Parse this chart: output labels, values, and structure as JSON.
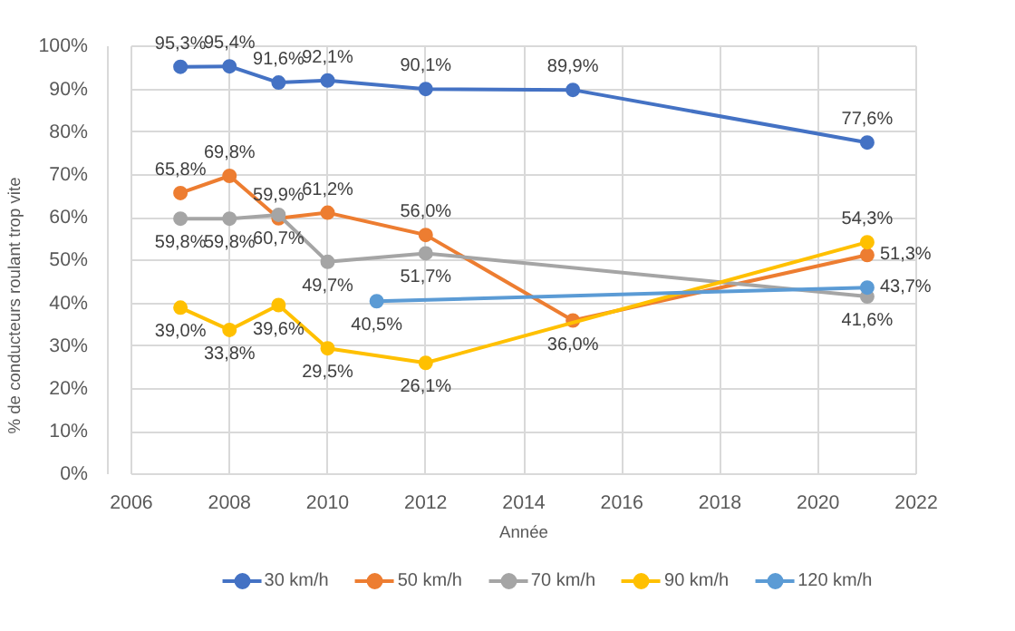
{
  "chart_data": {
    "type": "line",
    "xlabel": "Année",
    "ylabel": "% de conducteurs roulant trop vite",
    "xlim": [
      2006,
      2022
    ],
    "xticks": [
      2006,
      2008,
      2010,
      2012,
      2014,
      2016,
      2018,
      2020,
      2022
    ],
    "ylim": [
      0,
      100
    ],
    "yticks": [
      {
        "value": 0,
        "label": "0%"
      },
      {
        "value": 10,
        "label": "10%"
      },
      {
        "value": 20,
        "label": "20%"
      },
      {
        "value": 30,
        "label": "30%"
      },
      {
        "value": 40,
        "label": "40%"
      },
      {
        "value": 50,
        "label": "50%"
      },
      {
        "value": 60,
        "label": "60%"
      },
      {
        "value": 70,
        "label": "70%"
      },
      {
        "value": 80,
        "label": "80%"
      },
      {
        "value": 90,
        "label": "90%"
      },
      {
        "value": 100,
        "label": "100%"
      }
    ],
    "grid": true,
    "legend": "bottom",
    "marker": "circle",
    "line_style": "solid",
    "series": [
      {
        "name": "30 km/h",
        "color": "#4472c4",
        "x": [
          2007,
          2008,
          2009,
          2010,
          2012,
          2015,
          2021
        ],
        "values": [
          95.3,
          95.4,
          91.6,
          92.1,
          90.1,
          89.9,
          77.6
        ],
        "value_labels": [
          "95,3%",
          "95,4%",
          "91,6%",
          "92,1%",
          "90,1%",
          "89,9%",
          "77,6%"
        ]
      },
      {
        "name": "50 km/h",
        "color": "#ed7d31",
        "x": [
          2007,
          2008,
          2009,
          2010,
          2012,
          2015,
          2021
        ],
        "values": [
          65.8,
          69.8,
          59.9,
          61.2,
          56.0,
          36.0,
          51.3
        ],
        "value_labels": [
          "65,8%",
          "69,8%",
          "59,9%",
          "61,2%",
          "56,0%",
          "36,0%",
          "51,3%"
        ]
      },
      {
        "name": "70 km/h",
        "color": "#a5a5a5",
        "x": [
          2007,
          2008,
          2009,
          2010,
          2012,
          2021
        ],
        "values": [
          59.8,
          59.8,
          60.7,
          49.7,
          51.7,
          41.6
        ],
        "value_labels": [
          "59,8%",
          "59,8%",
          "60,7%",
          "49,7%",
          "51,7%",
          "41,6%"
        ]
      },
      {
        "name": "90 km/h",
        "color": "#ffc000",
        "x": [
          2007,
          2008,
          2009,
          2010,
          2012,
          2021
        ],
        "values": [
          39.0,
          33.8,
          39.6,
          29.5,
          26.1,
          54.3
        ],
        "value_labels": [
          "39,0%",
          "33,8%",
          "39,6%",
          "29,5%",
          "26,1%",
          "54,3%"
        ]
      },
      {
        "name": "120 km/h",
        "color": "#5b9bd5",
        "x": [
          2011,
          2021
        ],
        "values": [
          40.5,
          43.7
        ],
        "value_labels": [
          "40,5%",
          "43,7%"
        ]
      }
    ]
  }
}
